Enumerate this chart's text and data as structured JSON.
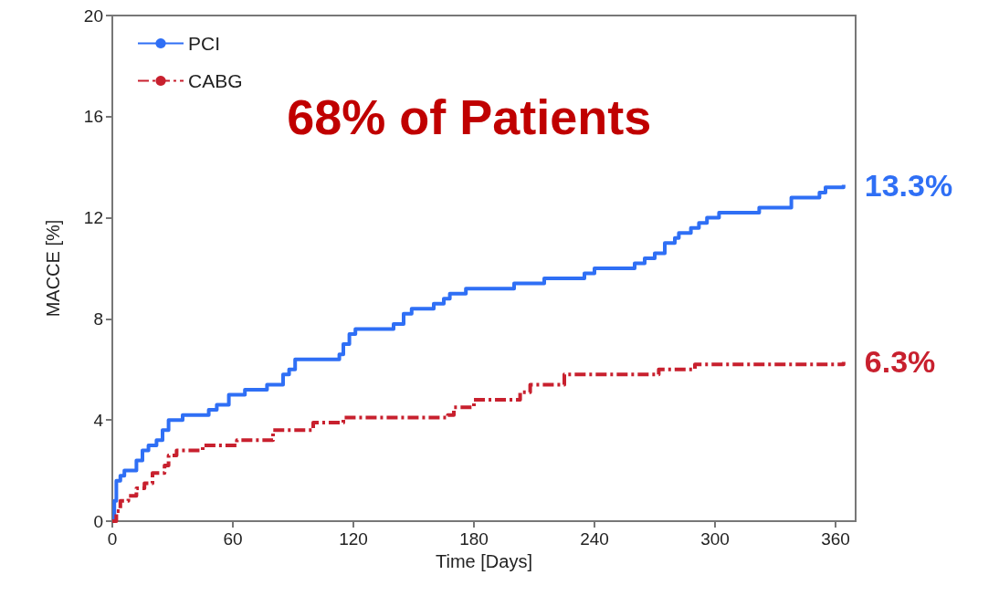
{
  "chart_data": {
    "type": "step",
    "xlabel": "Time [Days]",
    "ylabel": "MACCE [%]",
    "xlim": [
      0,
      370
    ],
    "xticks": [
      0,
      60,
      120,
      180,
      240,
      300,
      360
    ],
    "ylim": [
      0,
      20
    ],
    "yticks": [
      0,
      4,
      8,
      12,
      16,
      20
    ],
    "grid": false,
    "legend": "top left",
    "marker": "none",
    "annotations": [
      "68% of Patients",
      {
        "text": "13.3%",
        "x": 364,
        "y": 13.3
      },
      {
        "text": "6.3%",
        "x": 364,
        "y": 6.3
      }
    ],
    "series": [
      {
        "name": "PCI",
        "color": "#2f6ff5",
        "line_style": "solid",
        "x": [
          0,
          1,
          2,
          4,
          6,
          12,
          15,
          18,
          22,
          25,
          28,
          35,
          48,
          52,
          58,
          66,
          77,
          85,
          88,
          91,
          113,
          115,
          118,
          121,
          140,
          145,
          149,
          160,
          165,
          168,
          176,
          200,
          215,
          235,
          240,
          260,
          265,
          270,
          275,
          280,
          282,
          288,
          292,
          296,
          302,
          322,
          338,
          352,
          355,
          364
        ],
        "values": [
          0,
          0.8,
          1.6,
          1.8,
          2.0,
          2.4,
          2.8,
          3.0,
          3.2,
          3.6,
          4.0,
          4.2,
          4.4,
          4.6,
          5.0,
          5.2,
          5.4,
          5.8,
          6.0,
          6.4,
          6.6,
          7.0,
          7.4,
          7.6,
          7.8,
          8.2,
          8.4,
          8.6,
          8.8,
          9.0,
          9.2,
          9.4,
          9.6,
          9.8,
          10.0,
          10.2,
          10.4,
          10.6,
          11.0,
          11.2,
          11.4,
          11.6,
          11.8,
          12.0,
          12.2,
          12.4,
          12.8,
          13.0,
          13.2,
          13.3
        ]
      },
      {
        "name": "CABG",
        "color": "#c8202e",
        "line_style": "dashed",
        "x": [
          0,
          2,
          4,
          8,
          12,
          16,
          20,
          26,
          28,
          32,
          45,
          62,
          80,
          100,
          115,
          167,
          170,
          180,
          203,
          208,
          225,
          272,
          290,
          364
        ],
        "values": [
          0,
          0.4,
          0.8,
          1.0,
          1.3,
          1.5,
          1.9,
          2.2,
          2.6,
          2.8,
          3.0,
          3.2,
          3.6,
          3.9,
          4.1,
          4.2,
          4.5,
          4.8,
          5.1,
          5.4,
          5.8,
          6.0,
          6.2,
          6.3
        ]
      }
    ]
  }
}
